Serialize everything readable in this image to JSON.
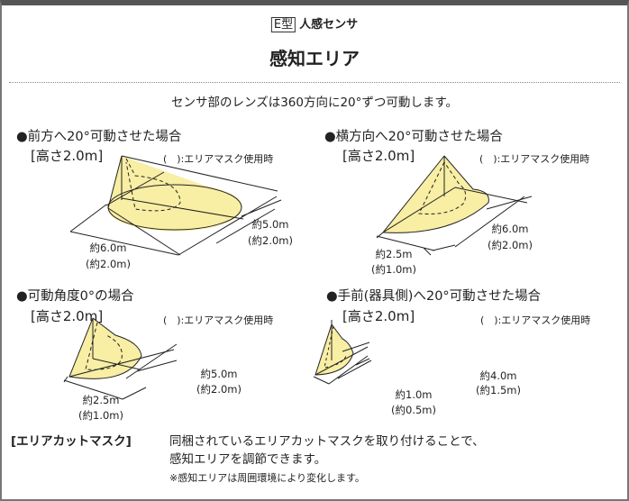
{
  "header": {
    "type_badge": "E型",
    "product": "人感センサ",
    "title": "感知エリア"
  },
  "intro": "センサ部のレンズは360方向に20°ずつ可動します。",
  "colors": {
    "area_fill": "#f8eea4",
    "line": "#222222"
  },
  "panels": [
    {
      "heading": "●前方へ20°可動させた場合",
      "height": "[高さ2.0m]",
      "note": "(　):エリアマスク使用時",
      "dim_a": "約6.0m",
      "dim_a_mask": "(約2.0m)",
      "dim_b": "約5.0m",
      "dim_b_mask": "(約2.0m)"
    },
    {
      "heading": "●横方向へ20°可動させた場合",
      "height": "[高さ2.0m]",
      "note": "(　):エリアマスク使用時",
      "dim_a": "約2.5m",
      "dim_a_mask": "(約1.0m)",
      "dim_b": "約6.0m",
      "dim_b_mask": "(約2.0m)"
    },
    {
      "heading": "●可動角度0°の場合",
      "height": "[高さ2.0m]",
      "note": "(　):エリアマスク使用時",
      "dim_a": "約2.5m",
      "dim_a_mask": "(約1.0m)",
      "dim_b": "約5.0m",
      "dim_b_mask": "(約2.0m)"
    },
    {
      "heading": "●手前(器具側)へ20°可動させた場合",
      "height": "[高さ2.0m]",
      "note": "(　):エリアマスク使用時",
      "dim_a": "約1.0m",
      "dim_a_mask": "(約0.5m)",
      "dim_b": "約4.0m",
      "dim_b_mask": "(約1.5m)"
    }
  ],
  "footer": {
    "label": "[エリアカットマスク]",
    "line1": "同梱されているエリアカットマスクを取り付けることで、",
    "line2": "感知エリアを調節できます。",
    "note": "※感知エリアは周囲環境により変化します。"
  }
}
